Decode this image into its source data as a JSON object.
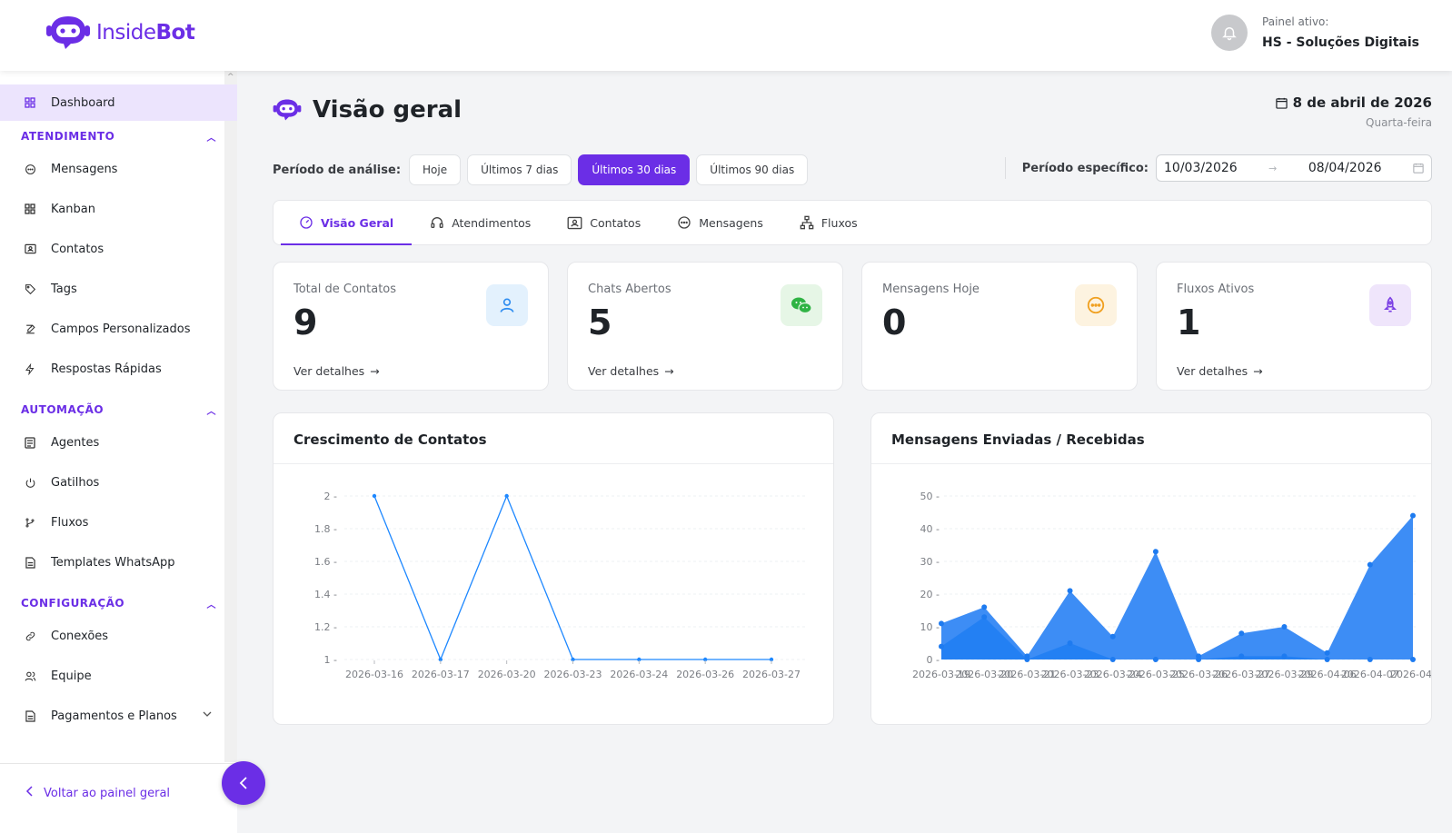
{
  "app": {
    "logo_text_light": "Inside",
    "logo_text_bold": "Bot",
    "painel_label": "Painel ativo:",
    "painel_value": "HS - Soluções Digitais"
  },
  "sidebar": {
    "dashboard": "Dashboard",
    "sections": [
      {
        "title": "ATENDIMENTO",
        "items": [
          "Mensagens",
          "Kanban",
          "Contatos",
          "Tags",
          "Campos Personalizados",
          "Respostas Rápidas"
        ]
      },
      {
        "title": "AUTOMAÇÃO",
        "items": [
          "Agentes",
          "Gatilhos",
          "Fluxos",
          "Templates WhatsApp"
        ]
      },
      {
        "title": "CONFIGURAÇÃO",
        "items": [
          "Conexões",
          "Equipe",
          "Pagamentos e Planos"
        ]
      }
    ],
    "back_label": "Voltar ao painel geral"
  },
  "page": {
    "title": "Visão geral",
    "date": "8 de abril de 2026",
    "weekday": "Quarta-feira"
  },
  "period": {
    "label": "Período de análise:",
    "buttons": [
      "Hoje",
      "Últimos 7 dias",
      "Últimos 30 dias",
      "Últimos 90 dias"
    ],
    "active_index": 2,
    "specific_label": "Período específico:",
    "start": "10/03/2026",
    "end": "08/04/2026"
  },
  "tabs": [
    "Visão Geral",
    "Atendimentos",
    "Contatos",
    "Mensagens",
    "Fluxos"
  ],
  "cards": [
    {
      "label": "Total de Contatos",
      "value": "9",
      "link": "Ver detalhes",
      "icon": "user-icon",
      "color": "#2d8cf0"
    },
    {
      "label": "Chats Abertos",
      "value": "5",
      "link": "Ver detalhes",
      "icon": "wechat-icon",
      "color": "#2fb344"
    },
    {
      "label": "Mensagens Hoje",
      "value": "0",
      "link": "",
      "icon": "message-icon",
      "color": "#f0a020"
    },
    {
      "label": "Fluxos Ativos",
      "value": "1",
      "link": "Ver detalhes",
      "icon": "rocket-icon",
      "color": "#7b3fe4"
    }
  ],
  "colors": {
    "accent": "#6b2ee6",
    "series": "#1e88ff"
  },
  "chart_data": [
    {
      "type": "line",
      "title": "Crescimento de Contatos",
      "categories": [
        "2026-03-16",
        "2026-03-17",
        "2026-03-20",
        "2026-03-23",
        "2026-03-24",
        "2026-03-26",
        "2026-03-27"
      ],
      "values": [
        2,
        1,
        2,
        1,
        1,
        1,
        1
      ],
      "yticks": [
        "1",
        "1.2",
        "1.4",
        "1.6",
        "1.8",
        "2"
      ],
      "ylim": [
        1,
        2
      ]
    },
    {
      "type": "area",
      "title": "Mensagens Enviadas / Recebidas",
      "categories": [
        "2026-03-19",
        "2026-03-20",
        "2026-03-21",
        "2026-03-23",
        "2026-03-24",
        "2026-03-25",
        "2026-03-26",
        "2026-03-27",
        "2026-03-29",
        "2026-04-06",
        "2026-04-07",
        "2026-04-"
      ],
      "tick_labels": [
        "2026-03-19",
        "2026-03-20",
        "2026-03-21",
        "2026-03-23",
        "2026-03-24",
        "2026-03-25",
        "2026-03-26",
        "2026-03-27",
        "2026-03-29",
        "2026-04-06",
        "2026-04-07",
        "2026-04-"
      ],
      "series": [
        {
          "values": [
            11,
            16,
            1,
            21,
            7,
            33,
            1,
            8,
            10,
            2,
            29,
            44
          ]
        },
        {
          "values": [
            4,
            13,
            0,
            5,
            0,
            0,
            0,
            1,
            1,
            0,
            0,
            0
          ]
        }
      ],
      "yticks": [
        "0",
        "10",
        "20",
        "30",
        "40",
        "50"
      ],
      "ylim": [
        0,
        50
      ]
    }
  ]
}
